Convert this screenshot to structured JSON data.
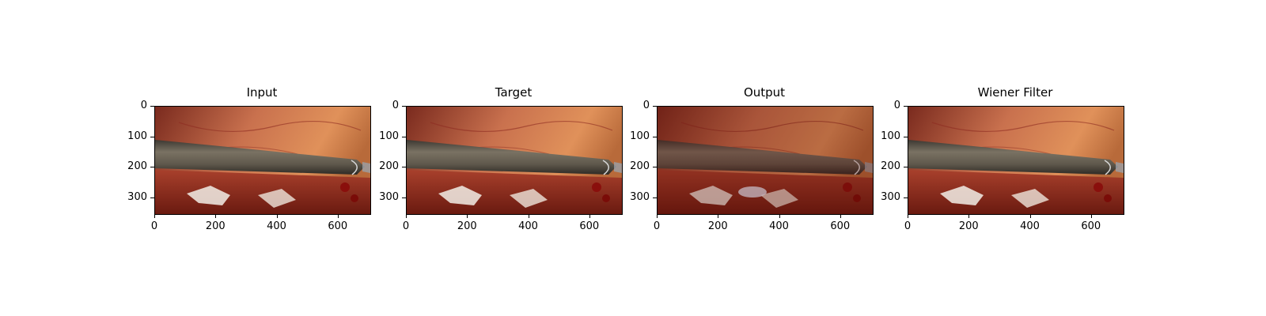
{
  "figure": {
    "panels": [
      {
        "title": "Input",
        "variant": "input"
      },
      {
        "title": "Target",
        "variant": "target"
      },
      {
        "title": "Output",
        "variant": "output"
      },
      {
        "title": "Wiener Filter",
        "variant": "wiener"
      }
    ],
    "xticks": [
      "0",
      "200",
      "400",
      "600"
    ],
    "yticks": [
      "0",
      "100",
      "200",
      "300"
    ],
    "image_extent": {
      "x_max": 704,
      "y_max": 352
    },
    "image_subject": "laparoscopic surgical scene with a gray instrument shaft crossing reddish tissue"
  }
}
